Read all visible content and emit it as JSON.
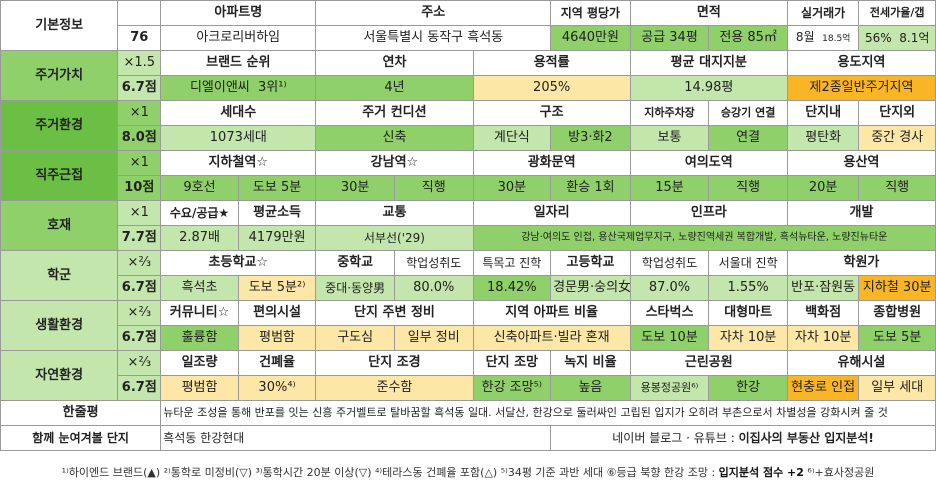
{
  "basic": {
    "section": "기본정보",
    "number": "76",
    "apt_name_label": "아파트명",
    "apt_name": "아크로리버하임",
    "address_label": "주소",
    "address": "서울특별시 동작구 흑석동",
    "price_label": "지역 평당가",
    "price": "4640만원",
    "area_label": "면적",
    "area_supply": "공급 34평",
    "area_exclusive": "전용 85㎡",
    "trade_label": "실거래가",
    "trade_month": "8월",
    "trade_price": "18.5억",
    "ratio_label": "전세가율/갭",
    "ratio": "56%",
    "gap": "8.1억"
  },
  "residence": {
    "section": "주거가치",
    "mult": "×1.5",
    "score": "6.7점",
    "brand_label": "브랜드 순위",
    "brand_name": "디엘이앤씨",
    "brand_rank": "3위¹⁾",
    "year_label": "연차",
    "year": "4년",
    "far_label": "용적률",
    "far": "205%",
    "land_label": "평균 대지지분",
    "land": "14.98평",
    "zone_label": "용도지역",
    "zone": "제2종일반주거지역"
  },
  "env": {
    "section": "주거환경",
    "mult": "×1",
    "score": "8.0점",
    "households_label": "세대수",
    "households": "1073세대",
    "condition_label": "주거 컨디션",
    "condition": "신축",
    "structure_label": "구조",
    "structure_a": "계단식",
    "structure_b": "방3·화2",
    "parking_label": "지하주차장",
    "parking": "보통",
    "elevator_label": "승강기 연결",
    "elevator": "연결",
    "inside_label": "단지내",
    "inside": "평탄화",
    "outside_label": "단지외",
    "outside": "중간 경사"
  },
  "commute": {
    "section": "직주근접",
    "mult": "×1",
    "score": "10점",
    "subway_label": "지하철역☆",
    "subway_line": "9호선",
    "subway_walk": "도보 5분",
    "gangnam_label": "강남역☆",
    "gangnam_time": "30분",
    "gangnam_type": "직행",
    "gwanghwamun_label": "광화문역",
    "gwanghwamun_time": "30분",
    "gwanghwamun_type": "환승 1회",
    "yeouido_label": "여의도역",
    "yeouido_time": "15분",
    "yeouido_type": "직행",
    "yongsan_label": "용산역",
    "yongsan_time": "20분",
    "yongsan_type": "직행"
  },
  "good": {
    "section": "호재",
    "mult": "×1",
    "score": "7.7점",
    "demand_label": "수요/공급★",
    "demand": "2.87배",
    "income_label": "평균소득",
    "income": "4179만원",
    "traffic_label": "교통",
    "traffic": "서부선('29)",
    "jobs_label": "일자리",
    "infra_label": "인프라",
    "dev_label": "개발",
    "jobs_infra_dev": "강남·여의도 인접, 용산국제업무지구, 노량진역세권 복합개발, 흑석뉴타운, 노량진뉴타운"
  },
  "school": {
    "section": "학군",
    "mult": "×⅔",
    "score": "6.7점",
    "elem_label": "초등학교☆",
    "elem": "흑석초",
    "elem_walk": "도보 5분²⁾",
    "middle_label": "중학교",
    "middle": "중대·동양男",
    "middle_perf_label": "학업성취도",
    "middle_perf": "80.0%",
    "special_label": "특목고 진학",
    "special": "18.42%",
    "high_label": "고등학교",
    "high": "경문男·숭의女³⁾",
    "high_perf_label": "학업성취도",
    "high_perf": "87.0%",
    "snu_label": "서울대 진학",
    "snu": "1.55%",
    "academy_label": "학원가",
    "academy_a": "반포·잠원동",
    "academy_b": "지하철 30분"
  },
  "life": {
    "section": "생활환경",
    "mult": "×⅔",
    "score": "6.7점",
    "community_label": "커뮤니티☆",
    "community": "훌륭함",
    "facility_label": "편의시설",
    "facility": "평범함",
    "around_label": "단지 주변 정비",
    "around_a": "구도심",
    "around_b": "일부 정비",
    "ratio_label": "지역 아파트 비율",
    "ratio": "신축아파트·빌라 혼재",
    "starbucks_label": "스타벅스",
    "starbucks": "도보 10분",
    "mart_label": "대형마트",
    "mart": "자차 10분",
    "dept_label": "백화점",
    "dept": "자차 10분",
    "hospital_label": "종합병원",
    "hospital": "도보 5분"
  },
  "nature": {
    "section": "자연환경",
    "mult": "×⅔",
    "score": "6.7점",
    "green_label": "일조량",
    "green": "평범함",
    "bcr_label": "건폐율",
    "bcr": "30%⁴⁾",
    "land_label": "단지 조경",
    "land": "준수함",
    "view_label": "단지 조망",
    "view": "한강 조망⁵⁾",
    "greenratio_label": "녹지 비율",
    "greenratio": "높음",
    "park_label": "근린공원",
    "park_a": "용봉정공원⁶⁾",
    "park_b": "한강",
    "harmful_label": "유해시설",
    "harmful_a": "현충로 인접",
    "harmful_b": "일부 세대"
  },
  "review": {
    "section": "한줄평",
    "text": "뉴타운 조성을 통해 반포를 잇는 신흥 주거벨트로 탈바꿈할 흑석동 일대. 서달산, 한강으로 둘러싸인 고립된 입지가 오히려 부촌으로서 차별성을 강화시켜 줄 것"
  },
  "compare": {
    "section": "함께 눈여겨볼 단지",
    "text": "흑석동 한강현대",
    "source_a": "네이버 블로그 · 유튜브 : ",
    "source_b": "이집사의 부동산 입지분석!"
  },
  "footer": {
    "text_a": "¹⁾하이엔드 브랜드(▲) ²⁾통학로 미정비(▽) ³⁾통학시간 20분 이상(▽) ⁴⁾테라스동 건폐율 포함(△) ⁵⁾34평 기준 과반 세대 ⑥등급 북향 한강 조망 : ",
    "text_b": "입지분석 점수 +2",
    "text_c": " ⁶⁾+효사정공원"
  }
}
